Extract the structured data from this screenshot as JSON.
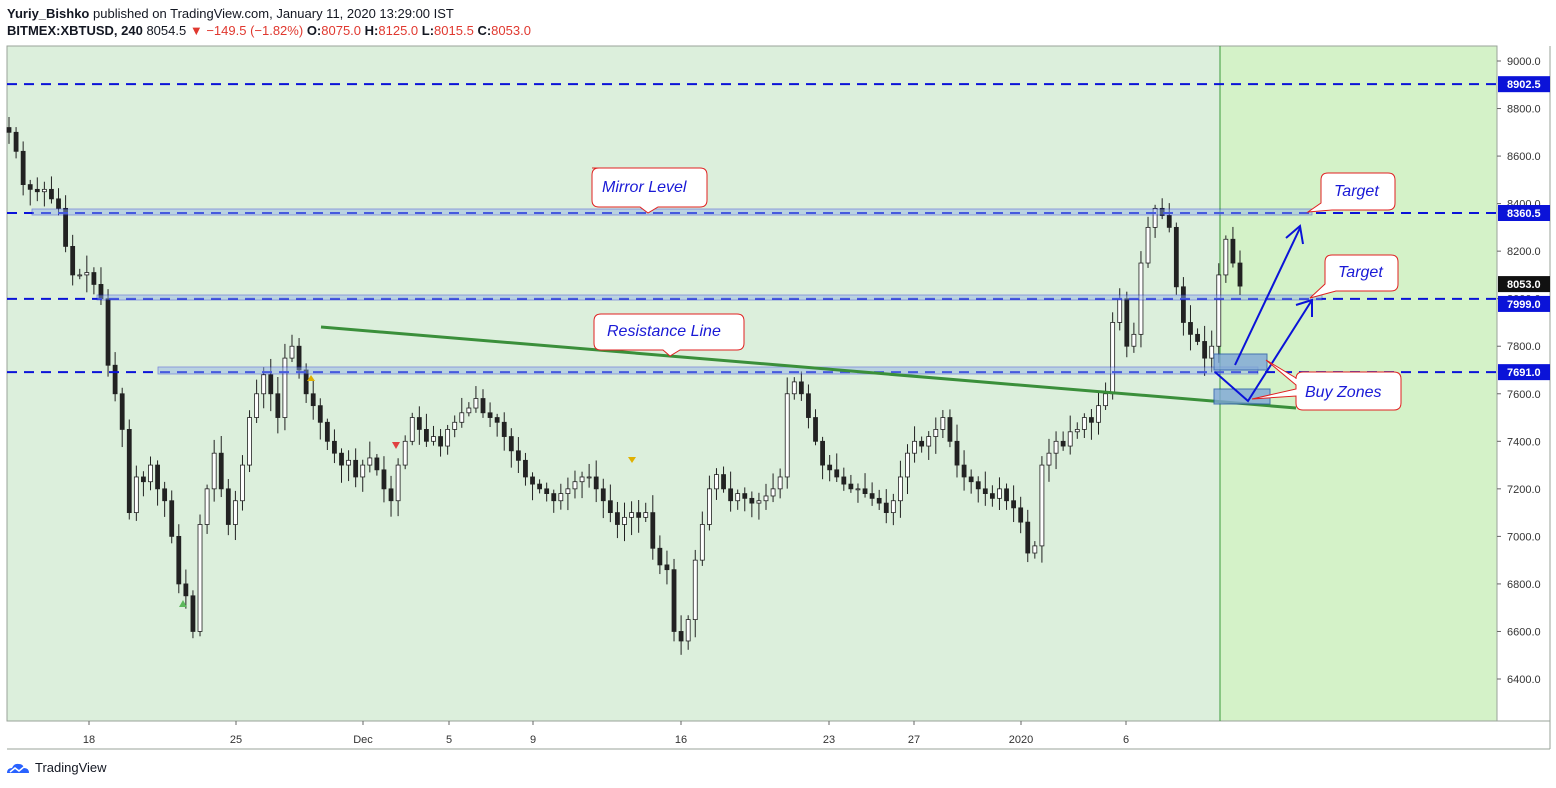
{
  "header": {
    "author": "Yuriy_Bishko",
    "published_text": "published on TradingView.com, January 11, 2020 13:29:00 IST",
    "symbol": "BITMEX:XBTUSD, 240",
    "price": "8054.5",
    "change": "−149.5 (−1.82%)",
    "o_label": "O:",
    "o_value": "8075.0",
    "h_label": "H:",
    "h_value": "8125.0",
    "l_label": "L:",
    "l_value": "8015.5",
    "c_label": "C:",
    "c_value": "8053.0"
  },
  "footer": {
    "brand": "TradingView"
  },
  "colors": {
    "bg_left": "#dcefdc",
    "bg_right": "#d4f2c8",
    "level_line": "#0b13d8",
    "trend_line": "#3a8f3a",
    "candle": "#222222",
    "callout_border": "#e02020",
    "callout_text": "#1a1ad6",
    "label_black": "#111111"
  },
  "chart_data": {
    "type": "candlestick",
    "title": "",
    "y_ticks": [
      "9000.0",
      "8800.0",
      "8600.0",
      "8400.0",
      "8200.0",
      "8000.0",
      "7800.0",
      "7600.0",
      "7400.0",
      "7200.0",
      "7000.0",
      "6800.0",
      "6600.0",
      "6400.0"
    ],
    "ylim": [
      6200,
      9100
    ],
    "x_ticks": [
      "18",
      "25",
      "Dec",
      "5",
      "9",
      "16",
      "23",
      "27",
      "2020",
      "6"
    ],
    "price_labels": [
      {
        "value": "8902.5",
        "price": 8902.5,
        "style": "blue"
      },
      {
        "value": "8360.5",
        "price": 8360.5,
        "style": "blue"
      },
      {
        "value": "8053.0",
        "price": 8053.0,
        "style": "black"
      },
      {
        "value": "7999.0",
        "price": 7999.0,
        "style": "blue"
      },
      {
        "value": "7691.0",
        "price": 7691.0,
        "style": "blue"
      }
    ],
    "horizontal_levels": [
      8902.5,
      8360.5,
      7999.0,
      7691.0
    ],
    "annotations": {
      "mirror_level": "Mirror Level",
      "resistance_line": "Resistance Line",
      "target_1": "Target",
      "target_2": "Target",
      "buy_zones": "Buy Zones"
    },
    "close_path": [
      8700,
      8620,
      8480,
      8460,
      8450,
      8460,
      8420,
      8380,
      8220,
      8100,
      8100,
      8110,
      8060,
      8000,
      7720,
      7600,
      7450,
      7100,
      7250,
      7230,
      7300,
      7200,
      7150,
      7000,
      6800,
      6750,
      6600,
      7050,
      7200,
      7350,
      7200,
      7050,
      7150,
      7300,
      7500,
      7600,
      7680,
      7600,
      7500,
      7750,
      7800,
      7700,
      7600,
      7550,
      7480,
      7400,
      7350,
      7300,
      7320,
      7250,
      7300,
      7330,
      7280,
      7200,
      7150,
      7300,
      7400,
      7500,
      7450,
      7400,
      7420,
      7380,
      7450,
      7480,
      7520,
      7540,
      7580,
      7520,
      7500,
      7480,
      7420,
      7360,
      7320,
      7250,
      7220,
      7200,
      7180,
      7150,
      7180,
      7200,
      7230,
      7250,
      7250,
      7200,
      7150,
      7100,
      7050,
      7080,
      7100,
      7080,
      7100,
      6950,
      6880,
      6860,
      6600,
      6560,
      6650,
      6900,
      7050,
      7200,
      7260,
      7200,
      7150,
      7180,
      7160,
      7140,
      7150,
      7170,
      7200,
      7250,
      7600,
      7650,
      7600,
      7500,
      7400,
      7300,
      7280,
      7250,
      7220,
      7200,
      7200,
      7180,
      7160,
      7140,
      7100,
      7150,
      7250,
      7350,
      7400,
      7380,
      7420,
      7450,
      7500,
      7400,
      7300,
      7250,
      7230,
      7200,
      7180,
      7160,
      7200,
      7150,
      7120,
      7060,
      6930,
      6960,
      7300,
      7350,
      7400,
      7380,
      7440,
      7450,
      7500,
      7480,
      7550,
      7600,
      7900,
      8000,
      7800,
      7850,
      8150,
      8300,
      8380,
      8350,
      8300,
      8050,
      7900,
      7850,
      7820,
      7750,
      7800,
      8100,
      8250,
      8150,
      8053
    ]
  }
}
